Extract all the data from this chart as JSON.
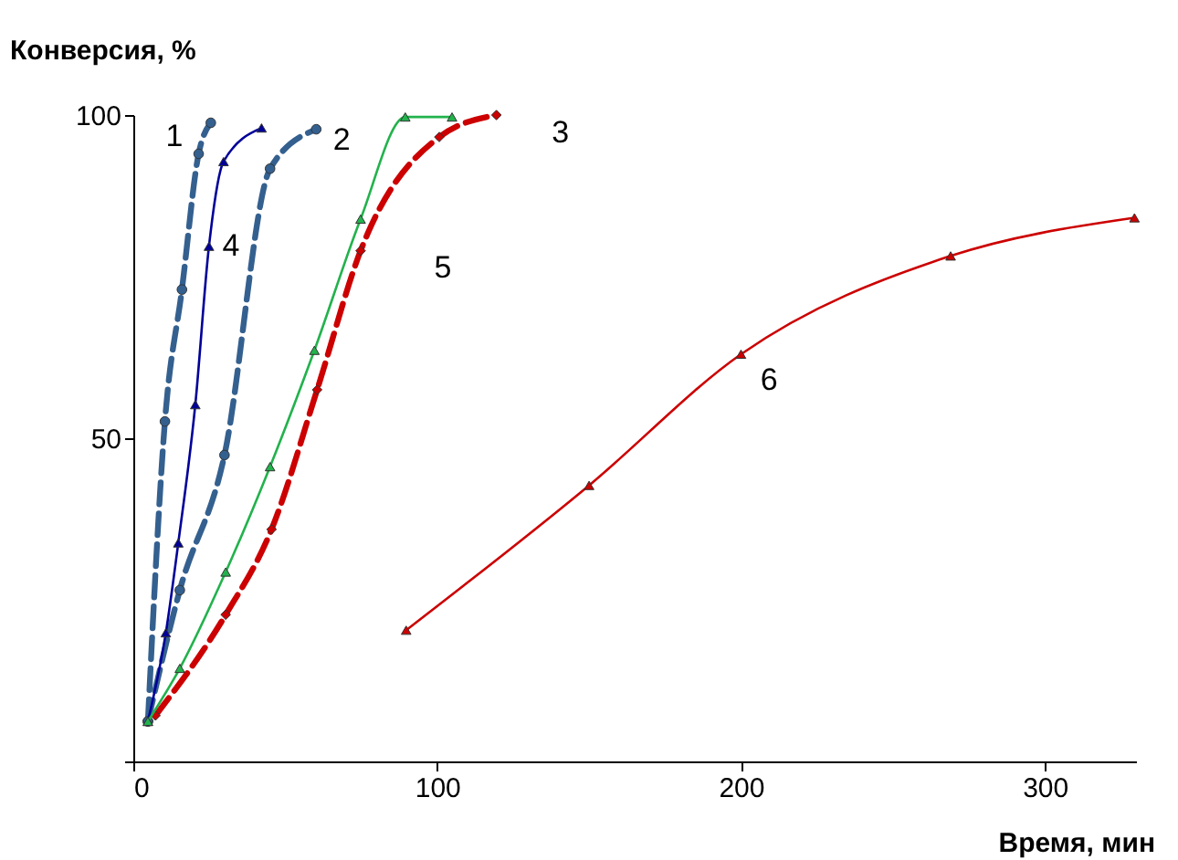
{
  "chart_data": {
    "type": "line",
    "xlabel": "Время, мин",
    "ylabel": "Конверсия, %",
    "xlim": [
      0,
      330
    ],
    "ylim": [
      0,
      100
    ],
    "xticks": [
      0,
      100,
      200,
      300
    ],
    "yticks": [
      {
        "value": 0,
        "label": null
      },
      50,
      100
    ],
    "grid": false,
    "series": [
      {
        "name": "1",
        "color": "#34608f",
        "line_style": "dashed",
        "marker": "circle",
        "x": [
          4.8,
          10.4,
          16,
          21.5,
          25.5
        ],
        "values": [
          6.2,
          52.6,
          73,
          94,
          98.8
        ]
      },
      {
        "name": "2",
        "color": "#34608f",
        "line_style": "dashed",
        "marker": "circle",
        "x": [
          4.8,
          15.3,
          30,
          45,
          60.2
        ],
        "values": [
          6.2,
          26.5,
          47.4,
          91.7,
          97.8
        ]
      },
      {
        "name": "3",
        "color": "#cc0000",
        "line_style": "dashed",
        "marker": "diamond",
        "x": [
          7.3,
          30.4,
          45.5,
          60.5,
          74.8,
          100.7,
          119.5
        ],
        "values": [
          7.1,
          22.7,
          35.9,
          57.5,
          79,
          96.6,
          100
        ]
      },
      {
        "name": "4",
        "color": "#000099",
        "line_style": "solid",
        "marker": "triangle",
        "x": [
          4.8,
          10.7,
          14.8,
          20.4,
          24.9,
          29.7,
          42.2
        ],
        "values": [
          6.2,
          19.9,
          33.8,
          55.2,
          79.7,
          92.8,
          98
        ]
      },
      {
        "name": "5",
        "color": "#22b24c",
        "line_style": "solid",
        "marker": "triangle",
        "x": [
          4.8,
          15.3,
          30.4,
          45,
          59.6,
          74.8,
          89.5,
          104.9
        ],
        "values": [
          6.2,
          14.4,
          29.3,
          45.6,
          63.6,
          83.9,
          99.7,
          99.7
        ]
      },
      {
        "name": "6",
        "color": "#cc0000",
        "line_style": "solid",
        "marker": "triangle",
        "x": [
          89.8,
          150,
          200,
          269,
          329.5
        ],
        "values": [
          20.3,
          42.7,
          63,
          78.2,
          84.1
        ]
      }
    ]
  }
}
